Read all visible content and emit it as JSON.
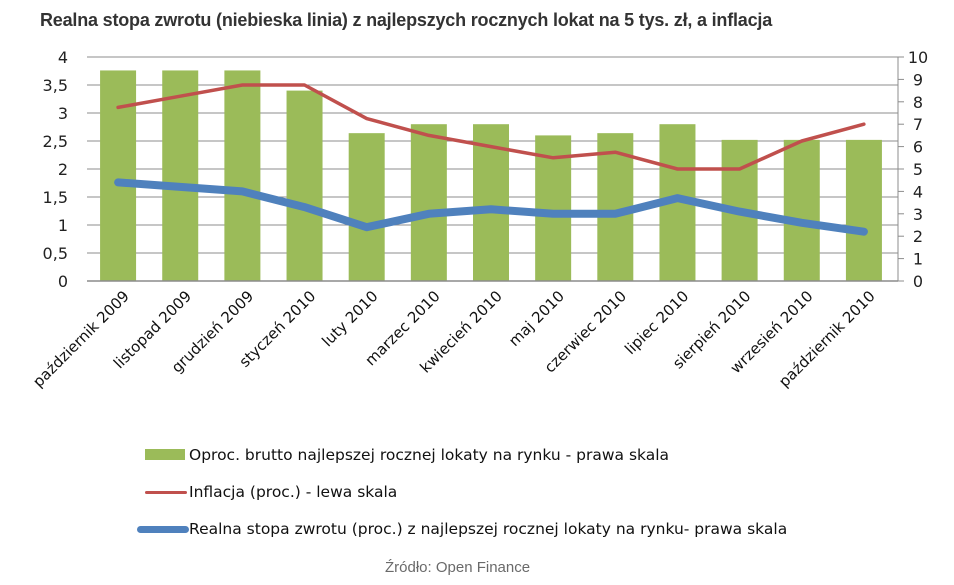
{
  "title": "Realna stopa zwrotu (niebieska linia) z najlepszych rocznych lokat na 5 tys. zł, a inflacja",
  "source": "Źródło: Open Finance",
  "colors": {
    "bars": "#9BBB59",
    "inflation": "#C0504D",
    "real_rate": "#4F81BD",
    "grid": "#8c8c8c",
    "axis": "#8c8c8c"
  },
  "legend": [
    {
      "key": "bars",
      "label": "Oproc. brutto najlepszej rocznej lokaty na rynku - prawa skala"
    },
    {
      "key": "inflation",
      "label": "Inflacja (proc.) - lewa skala"
    },
    {
      "key": "real_rate",
      "label": "Realna stopa zwrotu (proc.) z najlepszej rocznej lokaty na rynku- prawa skala"
    }
  ],
  "chart_data": {
    "type": "bar",
    "title": "Realna stopa zwrotu (niebieska linia) z najlepszych rocznych lokat na 5 tys. zł, a inflacja",
    "xlabel": "",
    "ylabel": "",
    "categories": [
      "październik 2009",
      "listopad 2009",
      "grudzień 2009",
      "styczeń 2010",
      "luty 2010",
      "marzec 2010",
      "kwiecień 2010",
      "maj 2010",
      "czerwiec 2010",
      "lipiec 2010",
      "sierpień 2010",
      "wrzesień 2010",
      "październik 2010"
    ],
    "left_axis": {
      "ylim": [
        0,
        4
      ],
      "ticks": [
        "0",
        "0,5",
        "1",
        "1,5",
        "2",
        "2,5",
        "3",
        "3,5",
        "4"
      ],
      "tick_values": [
        0,
        0.5,
        1,
        1.5,
        2,
        2.5,
        3,
        3.5,
        4
      ]
    },
    "right_axis": {
      "ylim": [
        0,
        10
      ],
      "ticks": [
        "0",
        "1",
        "2",
        "3",
        "4",
        "5",
        "6",
        "7",
        "8",
        "9",
        "10"
      ],
      "tick_values": [
        0,
        1,
        2,
        3,
        4,
        5,
        6,
        7,
        8,
        9,
        10
      ]
    },
    "grid": true,
    "legend_position": "bottom",
    "series": [
      {
        "name": "Oproc. brutto najlepszej rocznej lokaty na rynku - prawa skala",
        "type": "bar",
        "axis": "right",
        "color": "#9BBB59",
        "values": [
          9.4,
          9.4,
          9.4,
          8.5,
          6.6,
          7.0,
          7.0,
          6.5,
          6.6,
          7.0,
          6.3,
          6.3,
          6.3
        ]
      },
      {
        "name": "Inflacja (proc.) - lewa skala",
        "type": "line",
        "axis": "left",
        "color": "#C0504D",
        "values": [
          3.1,
          3.3,
          3.5,
          3.5,
          2.9,
          2.6,
          2.4,
          2.2,
          2.3,
          2.0,
          2.0,
          2.5,
          2.8
        ]
      },
      {
        "name": "Realna stopa zwrotu (proc.) z najlepszej rocznej lokaty na rynku- prawa skala",
        "type": "line",
        "axis": "right",
        "color": "#4F81BD",
        "values": [
          4.4,
          4.2,
          4.0,
          3.3,
          2.4,
          3.0,
          3.2,
          3.0,
          3.0,
          3.7,
          3.1,
          2.6,
          2.2
        ]
      }
    ]
  }
}
